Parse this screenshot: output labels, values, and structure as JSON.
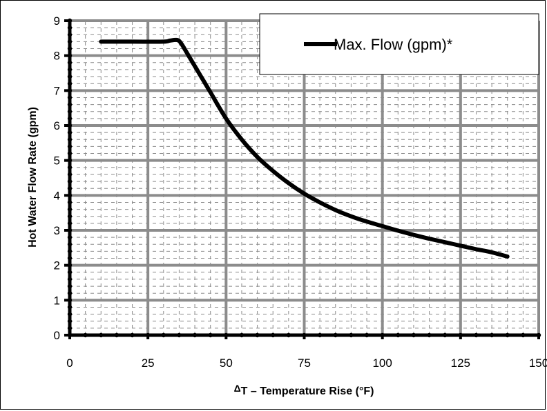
{
  "chart_data": {
    "type": "line",
    "xlabel_prefix": "Δ",
    "xlabel": "T – Temperature Rise (°F)",
    "ylabel": "Hot Water Flow Rate (gpm)",
    "xlim": [
      0,
      150
    ],
    "ylim": [
      0,
      9
    ],
    "x_ticks": [
      "0",
      "25",
      "50",
      "75",
      "100",
      "125",
      "150"
    ],
    "y_ticks": [
      "0",
      "1",
      "2",
      "3",
      "4",
      "5",
      "6",
      "7",
      "8",
      "9"
    ],
    "grid": true,
    "legend_position": "top-right",
    "series": [
      {
        "name": "Max. Flow (gpm)*",
        "color": "#000000",
        "x": [
          10,
          20,
          30,
          32,
          34,
          35,
          36,
          38,
          40,
          42,
          45,
          50,
          55,
          60,
          65,
          70,
          75,
          80,
          85,
          90,
          95,
          100,
          105,
          110,
          115,
          120,
          125,
          130,
          135,
          140
        ],
        "y": [
          8.4,
          8.4,
          8.4,
          8.43,
          8.45,
          8.42,
          8.3,
          8.0,
          7.7,
          7.4,
          6.95,
          6.2,
          5.6,
          5.1,
          4.7,
          4.35,
          4.05,
          3.8,
          3.58,
          3.4,
          3.25,
          3.12,
          2.99,
          2.87,
          2.76,
          2.66,
          2.56,
          2.46,
          2.37,
          2.25
        ]
      }
    ]
  }
}
